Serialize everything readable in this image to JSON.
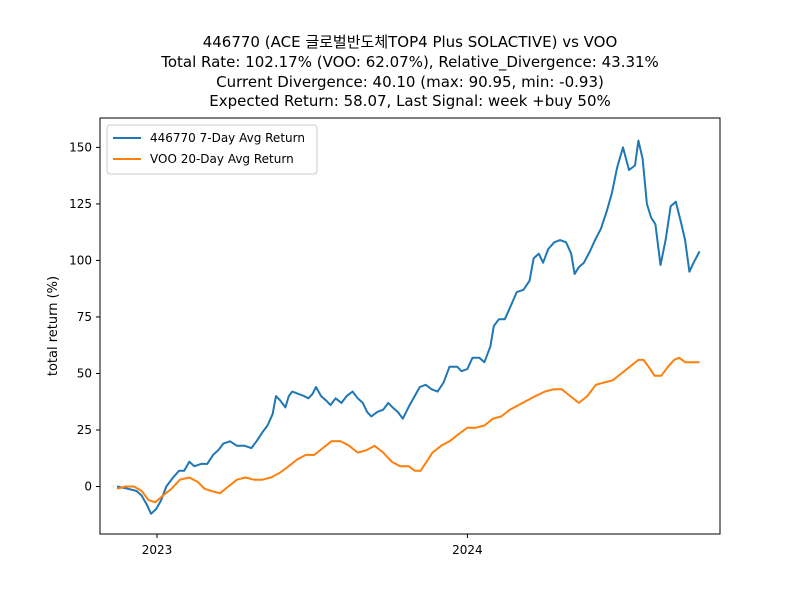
{
  "chart_data": {
    "type": "line",
    "title_lines": [
      "446770 (ACE 글로벌반도체TOP4 Plus SOLACTIVE) vs VOO",
      "Total Rate: 102.17% (VOO: 62.07%), Relative_Divergence: 43.31%",
      "Current Divergence: 40.10 (max: 90.95, min: -0.93)",
      "Expected Return: 58.07, Last Signal: week +buy 50%"
    ],
    "xlabel": "",
    "ylabel": "total return (%)",
    "xlim": [
      "2022-10-26",
      "2024-10-24"
    ],
    "ylim": [
      -21,
      163
    ],
    "x_ticks": [
      {
        "date": "2023-01-01",
        "label": "2023"
      },
      {
        "date": "2024-01-01",
        "label": "2024"
      }
    ],
    "y_ticks": [
      0,
      25,
      50,
      75,
      100,
      125,
      150
    ],
    "legend_position": "upper-left",
    "grid": false,
    "series": [
      {
        "name": "446770 7-Day Avg Return",
        "color": "#1f77b4",
        "points": [
          [
            "2022-11-15",
            0
          ],
          [
            "2022-11-28",
            -1
          ],
          [
            "2022-12-08",
            -2
          ],
          [
            "2022-12-14",
            -4
          ],
          [
            "2022-12-20",
            -8
          ],
          [
            "2022-12-25",
            -12
          ],
          [
            "2022-12-31",
            -10
          ],
          [
            "2023-01-06",
            -6
          ],
          [
            "2023-01-12",
            0
          ],
          [
            "2023-01-20",
            4
          ],
          [
            "2023-01-27",
            7
          ],
          [
            "2023-02-02",
            7
          ],
          [
            "2023-02-08",
            11
          ],
          [
            "2023-02-14",
            9
          ],
          [
            "2023-02-22",
            10
          ],
          [
            "2023-03-01",
            10
          ],
          [
            "2023-03-08",
            14
          ],
          [
            "2023-03-14",
            16
          ],
          [
            "2023-03-20",
            19
          ],
          [
            "2023-03-28",
            20
          ],
          [
            "2023-04-05",
            18
          ],
          [
            "2023-04-14",
            18
          ],
          [
            "2023-04-22",
            17
          ],
          [
            "2023-04-28",
            20
          ],
          [
            "2023-05-05",
            24
          ],
          [
            "2023-05-11",
            27
          ],
          [
            "2023-05-17",
            32
          ],
          [
            "2023-05-21",
            40
          ],
          [
            "2023-05-26",
            38
          ],
          [
            "2023-06-01",
            35
          ],
          [
            "2023-06-05",
            40
          ],
          [
            "2023-06-09",
            42
          ],
          [
            "2023-06-16",
            41
          ],
          [
            "2023-06-23",
            40
          ],
          [
            "2023-06-28",
            39
          ],
          [
            "2023-07-03",
            41
          ],
          [
            "2023-07-07",
            44
          ],
          [
            "2023-07-13",
            40
          ],
          [
            "2023-07-19",
            38
          ],
          [
            "2023-07-24",
            36
          ],
          [
            "2023-07-30",
            39
          ],
          [
            "2023-08-06",
            37
          ],
          [
            "2023-08-12",
            40
          ],
          [
            "2023-08-19",
            42
          ],
          [
            "2023-08-25",
            39
          ],
          [
            "2023-08-31",
            37
          ],
          [
            "2023-09-05",
            33
          ],
          [
            "2023-09-10",
            31
          ],
          [
            "2023-09-17",
            33
          ],
          [
            "2023-09-24",
            34
          ],
          [
            "2023-09-30",
            37
          ],
          [
            "2023-10-05",
            35
          ],
          [
            "2023-10-11",
            33
          ],
          [
            "2023-10-17",
            30
          ],
          [
            "2023-10-25",
            36
          ],
          [
            "2023-10-31",
            40
          ],
          [
            "2023-11-06",
            44
          ],
          [
            "2023-11-13",
            45
          ],
          [
            "2023-11-20",
            43
          ],
          [
            "2023-11-27",
            42
          ],
          [
            "2023-12-04",
            46
          ],
          [
            "2023-12-11",
            53
          ],
          [
            "2023-12-20",
            53
          ],
          [
            "2023-12-25",
            51
          ],
          [
            "2024-01-01",
            52
          ],
          [
            "2024-01-07",
            57
          ],
          [
            "2024-01-15",
            57
          ],
          [
            "2024-01-21",
            55
          ],
          [
            "2024-01-28",
            62
          ],
          [
            "2024-02-01",
            71
          ],
          [
            "2024-02-07",
            74
          ],
          [
            "2024-02-14",
            74
          ],
          [
            "2024-02-20",
            79
          ],
          [
            "2024-02-28",
            86
          ],
          [
            "2024-03-07",
            87
          ],
          [
            "2024-03-14",
            91
          ],
          [
            "2024-03-19",
            101
          ],
          [
            "2024-03-25",
            103
          ],
          [
            "2024-03-30",
            99
          ],
          [
            "2024-04-05",
            105
          ],
          [
            "2024-04-12",
            108
          ],
          [
            "2024-04-19",
            109
          ],
          [
            "2024-04-26",
            108
          ],
          [
            "2024-05-02",
            103
          ],
          [
            "2024-05-06",
            94
          ],
          [
            "2024-05-11",
            97
          ],
          [
            "2024-05-17",
            99
          ],
          [
            "2024-05-24",
            104
          ],
          [
            "2024-05-30",
            109
          ],
          [
            "2024-06-06",
            114
          ],
          [
            "2024-06-13",
            122
          ],
          [
            "2024-06-19",
            130
          ],
          [
            "2024-06-25",
            141
          ],
          [
            "2024-07-02",
            150
          ],
          [
            "2024-07-09",
            140
          ],
          [
            "2024-07-16",
            142
          ],
          [
            "2024-07-20",
            153
          ],
          [
            "2024-07-25",
            145
          ],
          [
            "2024-07-30",
            125
          ],
          [
            "2024-08-04",
            119
          ],
          [
            "2024-08-09",
            116
          ],
          [
            "2024-08-15",
            98
          ],
          [
            "2024-08-21",
            109
          ],
          [
            "2024-08-27",
            124
          ],
          [
            "2024-09-02",
            126
          ],
          [
            "2024-09-08",
            117
          ],
          [
            "2024-09-13",
            109
          ],
          [
            "2024-09-18",
            95
          ],
          [
            "2024-09-23",
            99
          ],
          [
            "2024-09-30",
            104
          ]
        ]
      },
      {
        "name": "VOO 20-Day Avg Return",
        "color": "#ff7f0e",
        "points": [
          [
            "2022-11-15",
            -1
          ],
          [
            "2022-11-25",
            0
          ],
          [
            "2022-12-05",
            0
          ],
          [
            "2022-12-14",
            -2
          ],
          [
            "2022-12-22",
            -6
          ],
          [
            "2022-12-30",
            -7
          ],
          [
            "2023-01-08",
            -4
          ],
          [
            "2023-01-18",
            -1
          ],
          [
            "2023-01-28",
            3
          ],
          [
            "2023-02-08",
            4
          ],
          [
            "2023-02-18",
            2
          ],
          [
            "2023-02-26",
            -1
          ],
          [
            "2023-03-06",
            -2
          ],
          [
            "2023-03-16",
            -3
          ],
          [
            "2023-03-26",
            0
          ],
          [
            "2023-04-05",
            3
          ],
          [
            "2023-04-15",
            4
          ],
          [
            "2023-04-25",
            3
          ],
          [
            "2023-05-05",
            3
          ],
          [
            "2023-05-15",
            4
          ],
          [
            "2023-05-25",
            6
          ],
          [
            "2023-06-05",
            9
          ],
          [
            "2023-06-15",
            12
          ],
          [
            "2023-06-25",
            14
          ],
          [
            "2023-07-05",
            14
          ],
          [
            "2023-07-15",
            17
          ],
          [
            "2023-07-25",
            20
          ],
          [
            "2023-08-05",
            20
          ],
          [
            "2023-08-15",
            18
          ],
          [
            "2023-08-25",
            15
          ],
          [
            "2023-09-04",
            16
          ],
          [
            "2023-09-14",
            18
          ],
          [
            "2023-09-24",
            15
          ],
          [
            "2023-10-04",
            11
          ],
          [
            "2023-10-14",
            9
          ],
          [
            "2023-10-24",
            9
          ],
          [
            "2023-10-31",
            7
          ],
          [
            "2023-11-07",
            7
          ],
          [
            "2023-11-14",
            11
          ],
          [
            "2023-11-21",
            15
          ],
          [
            "2023-12-01",
            18
          ],
          [
            "2023-12-11",
            20
          ],
          [
            "2023-12-21",
            23
          ],
          [
            "2024-01-01",
            26
          ],
          [
            "2024-01-11",
            26
          ],
          [
            "2024-01-21",
            27
          ],
          [
            "2024-01-31",
            30
          ],
          [
            "2024-02-10",
            31
          ],
          [
            "2024-02-20",
            34
          ],
          [
            "2024-03-01",
            36
          ],
          [
            "2024-03-11",
            38
          ],
          [
            "2024-03-21",
            40
          ],
          [
            "2024-04-01",
            42
          ],
          [
            "2024-04-11",
            43
          ],
          [
            "2024-04-21",
            43
          ],
          [
            "2024-05-01",
            40
          ],
          [
            "2024-05-11",
            37
          ],
          [
            "2024-05-21",
            40
          ],
          [
            "2024-05-31",
            45
          ],
          [
            "2024-06-10",
            46
          ],
          [
            "2024-06-20",
            47
          ],
          [
            "2024-06-30",
            50
          ],
          [
            "2024-07-10",
            53
          ],
          [
            "2024-07-20",
            56
          ],
          [
            "2024-07-26",
            56
          ],
          [
            "2024-08-01",
            53
          ],
          [
            "2024-08-08",
            49
          ],
          [
            "2024-08-16",
            49
          ],
          [
            "2024-08-24",
            53
          ],
          [
            "2024-08-31",
            56
          ],
          [
            "2024-09-06",
            57
          ],
          [
            "2024-09-13",
            55
          ],
          [
            "2024-09-20",
            55
          ],
          [
            "2024-09-30",
            55
          ]
        ]
      }
    ]
  }
}
